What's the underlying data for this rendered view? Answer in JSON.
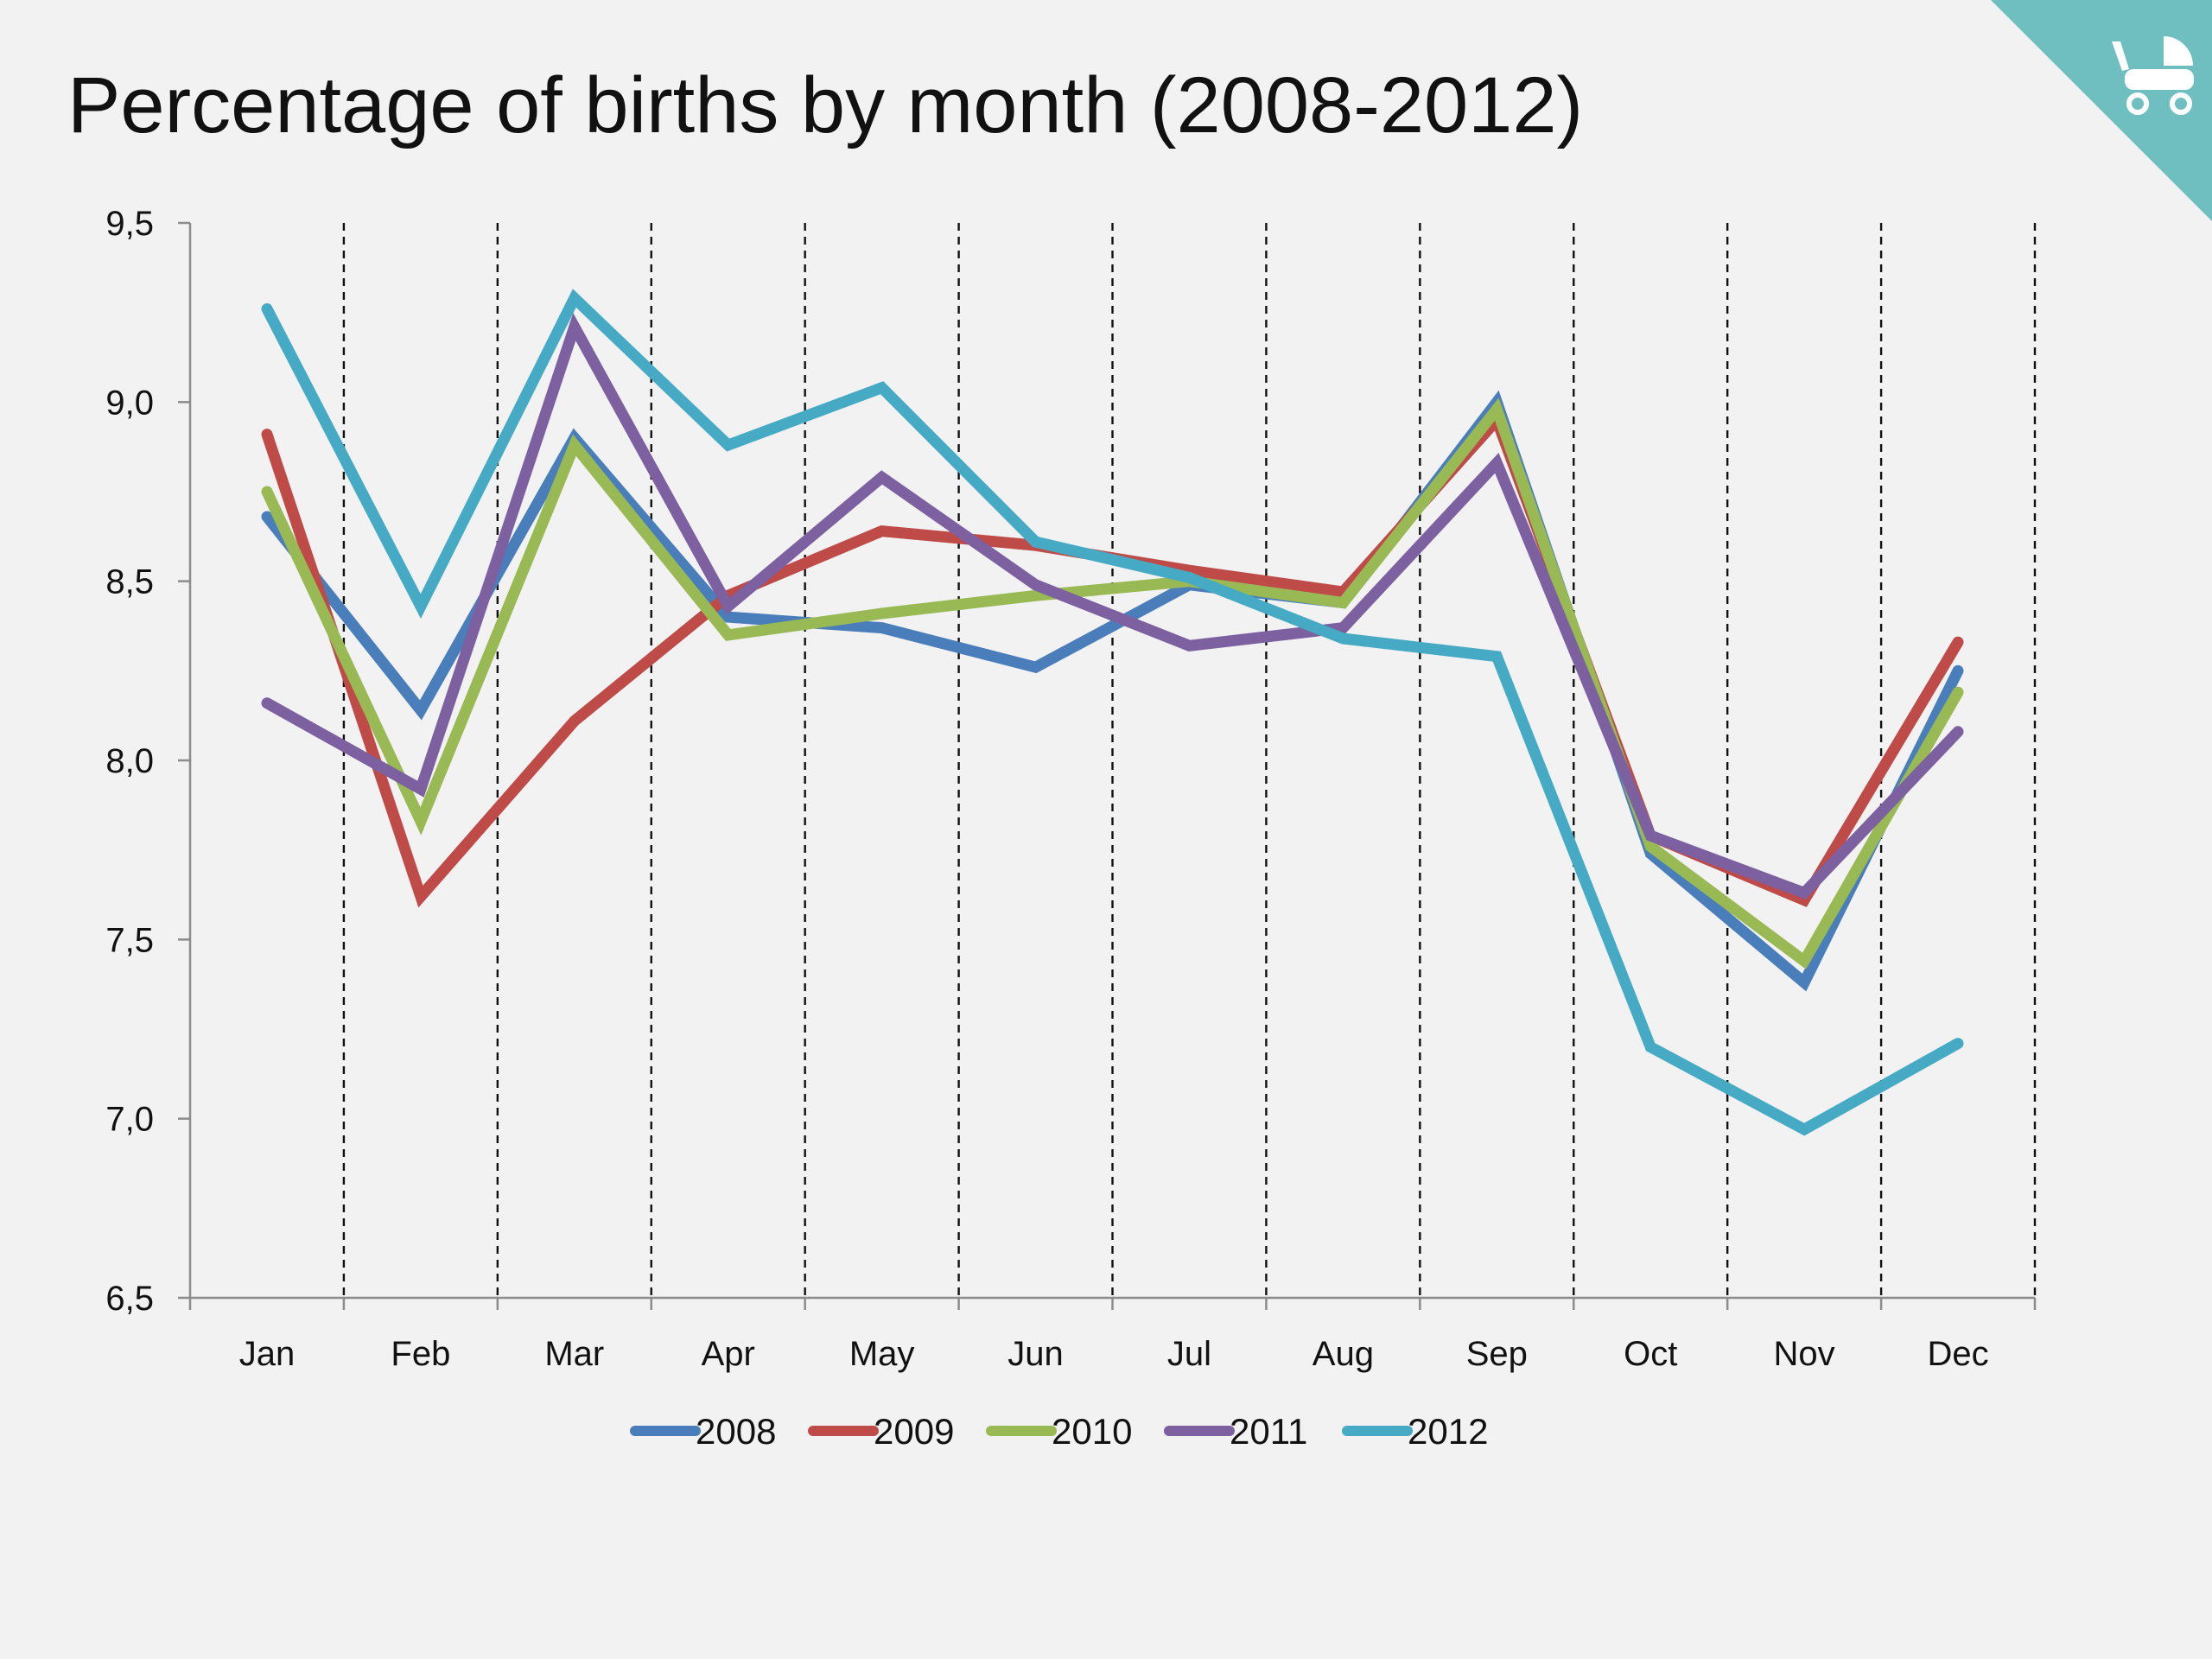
{
  "slide": {
    "title": "Percentage of births by month (2008-2012)"
  },
  "corner_badge": {
    "icon": "baby-stroller-icon",
    "color": "#6fbfc0"
  },
  "chart_data": {
    "type": "line",
    "title": "Percentage of births by month (2008-2012)",
    "xlabel": "",
    "ylabel": "",
    "categories": [
      "Jan",
      "Feb",
      "Mar",
      "Apr",
      "May",
      "Jun",
      "Jul",
      "Aug",
      "Sep",
      "Oct",
      "Nov",
      "Dec"
    ],
    "ylim": [
      6.5,
      9.5
    ],
    "yticks": [
      6.5,
      7.0,
      7.5,
      8.0,
      8.5,
      9.0,
      9.5
    ],
    "ytick_labels": [
      "6,5",
      "7,0",
      "7,5",
      "8,0",
      "8,5",
      "9,0",
      "9,5"
    ],
    "vertical_gridlines": "dashed",
    "legend_position": "bottom-center",
    "series": [
      {
        "name": "2008",
        "color": "#4a7ebb",
        "values": [
          8.68,
          8.14,
          8.9,
          8.4,
          8.37,
          8.26,
          8.49,
          8.44,
          9.0,
          7.74,
          7.38,
          8.25
        ]
      },
      {
        "name": "2009",
        "color": "#be4b48",
        "values": [
          8.91,
          7.62,
          8.11,
          8.46,
          8.64,
          8.6,
          8.53,
          8.47,
          8.95,
          7.79,
          7.61,
          8.33
        ]
      },
      {
        "name": "2010",
        "color": "#98b954",
        "values": [
          8.75,
          7.83,
          8.88,
          8.35,
          8.41,
          8.46,
          8.5,
          8.44,
          8.98,
          7.76,
          7.44,
          8.19
        ]
      },
      {
        "name": "2011",
        "color": "#7d60a0",
        "values": [
          8.16,
          7.92,
          9.21,
          8.43,
          8.79,
          8.49,
          8.32,
          8.37,
          8.83,
          7.79,
          7.63,
          8.08
        ]
      },
      {
        "name": "2012",
        "color": "#46aac5",
        "values": [
          9.26,
          8.43,
          9.29,
          8.88,
          9.04,
          8.61,
          8.51,
          8.34,
          8.29,
          7.2,
          6.97,
          7.21
        ]
      }
    ]
  }
}
